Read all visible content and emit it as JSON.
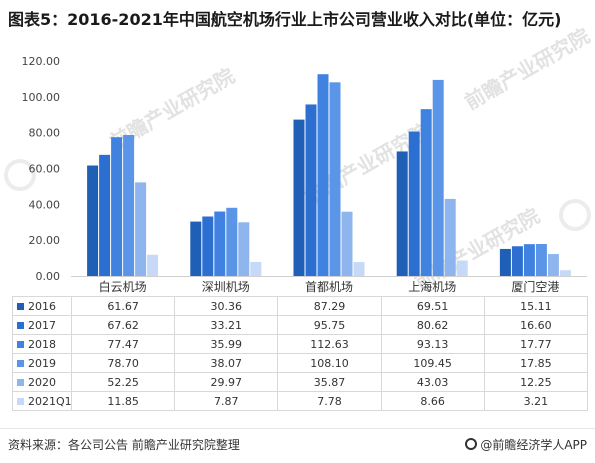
{
  "title": "图表5：2016-2021年中国航空机场行业上市公司营业收入对比(单位：亿元)",
  "chart_data": {
    "type": "bar",
    "categories": [
      "白云机场",
      "深圳机场",
      "首都机场",
      "上海机场",
      "厦门空港"
    ],
    "series": [
      {
        "name": "2016",
        "color": "#1f5fb6",
        "values": [
          61.67,
          30.36,
          87.29,
          69.51,
          15.11
        ]
      },
      {
        "name": "2017",
        "color": "#2c6fd0",
        "values": [
          67.62,
          33.21,
          95.75,
          80.62,
          16.6
        ]
      },
      {
        "name": "2018",
        "color": "#3f82e0",
        "values": [
          77.47,
          35.99,
          112.63,
          93.13,
          17.77
        ]
      },
      {
        "name": "2019",
        "color": "#5a95e8",
        "values": [
          78.7,
          38.07,
          108.1,
          109.45,
          17.85
        ]
      },
      {
        "name": "2020",
        "color": "#8fb5ee",
        "values": [
          52.25,
          29.97,
          35.87,
          43.03,
          12.25
        ]
      },
      {
        "name": "2021Q1",
        "color": "#c6d9f6",
        "values": [
          11.85,
          7.87,
          7.78,
          8.66,
          3.21
        ]
      }
    ],
    "yticks": [
      "0.00",
      "20.00",
      "40.00",
      "60.00",
      "80.00",
      "100.00",
      "120.00"
    ],
    "ylim": [
      0,
      120
    ],
    "grid": false,
    "legend": "table-below"
  },
  "footer": {
    "source": "资料来源：各公司公告 前瞻产业研究院整理",
    "brand": "@前瞻经济学人APP"
  },
  "watermark_text": "前瞻产业研究院"
}
